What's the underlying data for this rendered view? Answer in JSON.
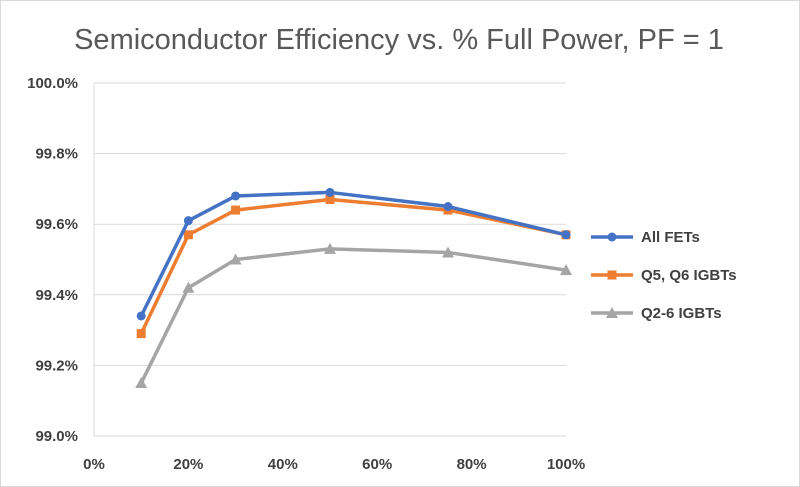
{
  "chart_data": {
    "type": "line",
    "title": "Semiconductor Efficiency vs. % Full Power, PF = 1",
    "xlabel": "",
    "ylabel": "",
    "xlim": [
      0,
      100
    ],
    "ylim": [
      99.0,
      100.0
    ],
    "x_ticks": [
      "0%",
      "20%",
      "40%",
      "60%",
      "80%",
      "100%"
    ],
    "y_ticks": [
      "99.0%",
      "99.2%",
      "99.4%",
      "99.6%",
      "99.8%",
      "100.0%"
    ],
    "x": [
      10,
      20,
      30,
      50,
      75,
      100
    ],
    "series": [
      {
        "name": "All FETs",
        "color": "#4472c4",
        "marker": "circle",
        "values": [
          99.34,
          99.61,
          99.68,
          99.69,
          99.65,
          99.57
        ]
      },
      {
        "name": "Q5, Q6 IGBTs",
        "color": "#ed7d31",
        "marker": "square",
        "values": [
          99.29,
          99.57,
          99.64,
          99.67,
          99.64,
          99.57
        ]
      },
      {
        "name": "Q2-6 IGBTs",
        "color": "#a5a5a5",
        "marker": "triangle",
        "values": [
          99.15,
          99.42,
          99.5,
          99.53,
          99.52,
          99.47
        ]
      }
    ],
    "grid": "horizontal",
    "legend": "right"
  }
}
